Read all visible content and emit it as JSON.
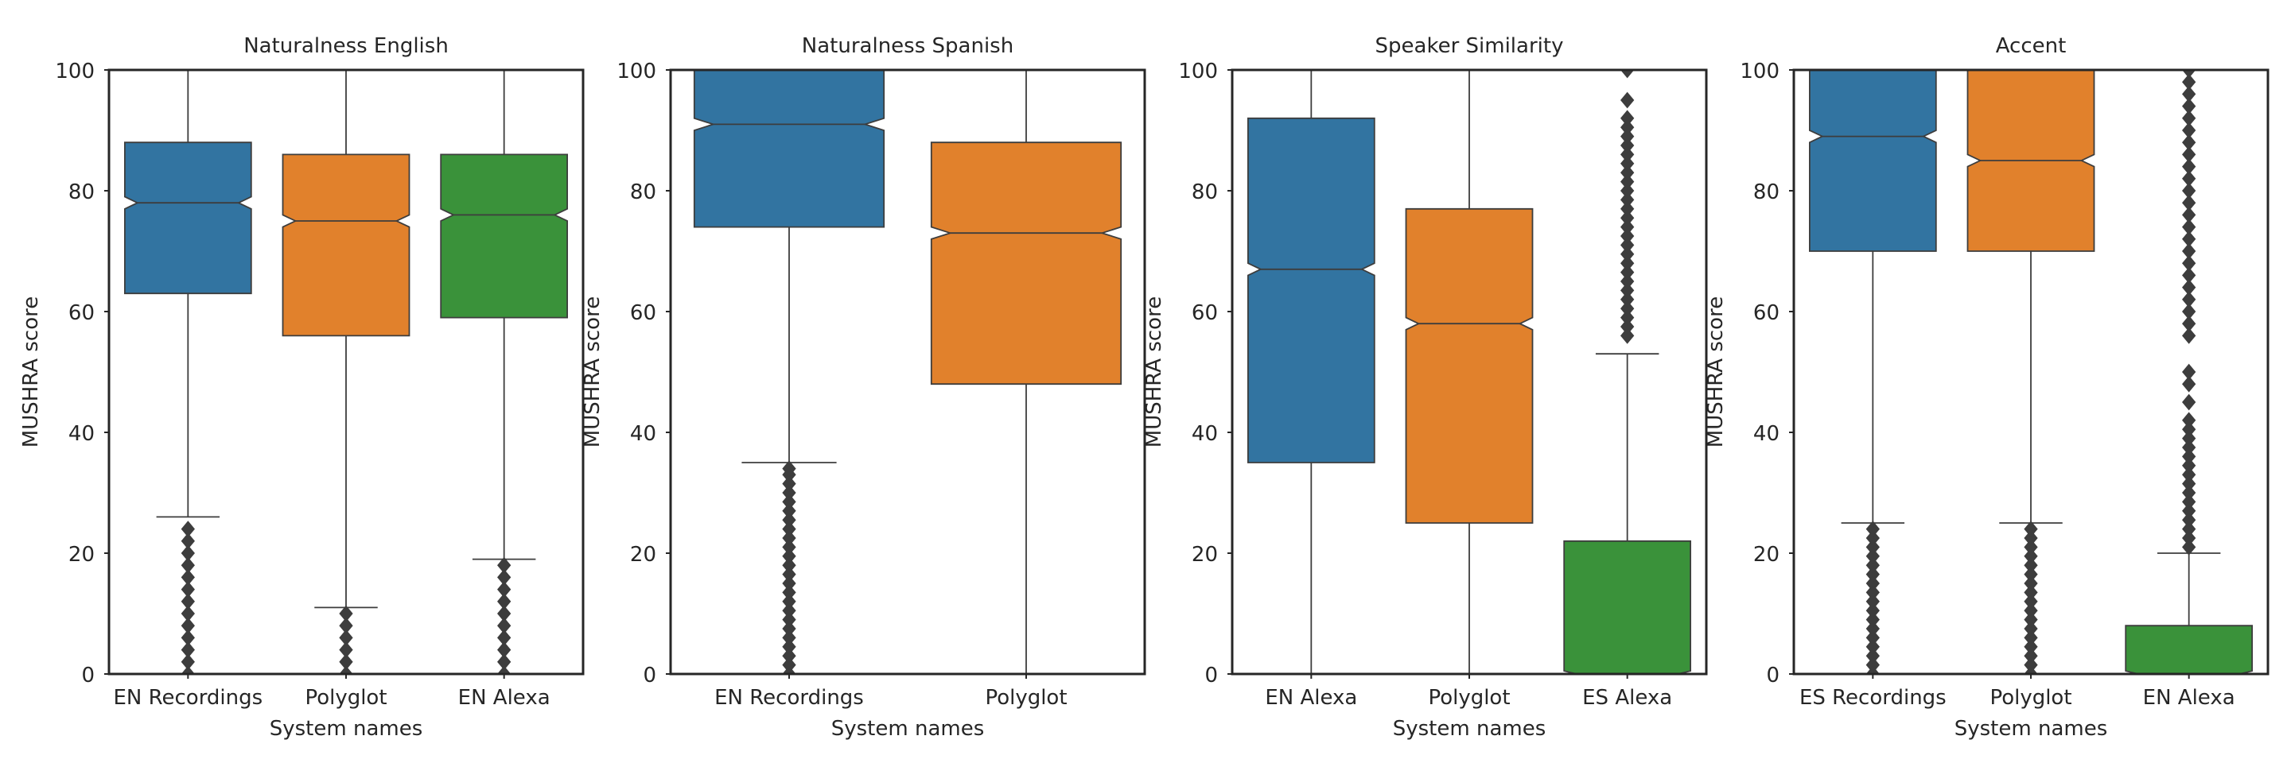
{
  "colors": {
    "blue": "#3274a1",
    "orange": "#e1812c",
    "green": "#3a923a",
    "edge": "#3d3d3d",
    "flier": "#3d3d3d"
  },
  "chart_data": [
    {
      "type": "box",
      "title": "Naturalness English",
      "xlabel": "System names",
      "ylabel": "MUSHRA score",
      "ylim": [
        0,
        100
      ],
      "yticks": [
        "0",
        "20",
        "40",
        "60",
        "80",
        "100"
      ],
      "notched": true,
      "categories": [
        "EN Recordings",
        "Polyglot",
        "EN Alexa"
      ],
      "boxes": [
        {
          "q1": 63,
          "median": 78,
          "q3": 88,
          "notch_low": 77,
          "notch_high": 79,
          "whisker_low": 26,
          "whisker_high": 100,
          "fliers": [
            0,
            2,
            4,
            6,
            8,
            10,
            12,
            14,
            16,
            18,
            20,
            22,
            24
          ],
          "color": "blue"
        },
        {
          "q1": 56,
          "median": 75,
          "q3": 86,
          "notch_low": 74,
          "notch_high": 76,
          "whisker_low": 11,
          "whisker_high": 100,
          "fliers": [
            0,
            2,
            4,
            6,
            8,
            10
          ],
          "color": "orange"
        },
        {
          "q1": 59,
          "median": 76,
          "q3": 86,
          "notch_low": 75,
          "notch_high": 77,
          "whisker_low": 19,
          "whisker_high": 100,
          "fliers": [
            0,
            2,
            4,
            6,
            8,
            10,
            12,
            14,
            16,
            18
          ],
          "color": "green"
        }
      ]
    },
    {
      "type": "box",
      "title": "Naturalness Spanish",
      "xlabel": "System names",
      "ylabel": "MUSHRA score",
      "ylim": [
        0,
        100
      ],
      "yticks": [
        "0",
        "20",
        "40",
        "60",
        "80",
        "100"
      ],
      "notched": true,
      "categories": [
        "EN Recordings",
        "Polyglot"
      ],
      "boxes": [
        {
          "q1": 74,
          "median": 91,
          "q3": 100,
          "notch_low": 90,
          "notch_high": 92,
          "whisker_low": 35,
          "whisker_high": 100,
          "fliers": [
            0,
            1.5,
            3,
            4.5,
            6,
            7.5,
            9,
            10.5,
            12,
            13.5,
            15,
            16.5,
            18,
            19.5,
            21,
            22.5,
            24,
            25.5,
            27,
            28.5,
            30,
            31.5,
            33,
            34
          ],
          "color": "blue"
        },
        {
          "q1": 48,
          "median": 73,
          "q3": 88,
          "notch_low": 72,
          "notch_high": 74,
          "whisker_low": 0,
          "whisker_high": 100,
          "fliers": [],
          "color": "orange"
        }
      ]
    },
    {
      "type": "box",
      "title": "Speaker Similarity",
      "xlabel": "System names",
      "ylabel": "MUSHRA score",
      "ylim": [
        0,
        100
      ],
      "yticks": [
        "0",
        "20",
        "40",
        "60",
        "80",
        "100"
      ],
      "notched": true,
      "categories": [
        "EN Alexa",
        "Polyglot",
        "ES Alexa"
      ],
      "boxes": [
        {
          "q1": 35,
          "median": 67,
          "q3": 92,
          "notch_low": 66,
          "notch_high": 68,
          "whisker_low": 0,
          "whisker_high": 100,
          "fliers": [],
          "color": "blue"
        },
        {
          "q1": 25,
          "median": 58,
          "q3": 77,
          "notch_low": 57,
          "notch_high": 59,
          "whisker_low": 0,
          "whisker_high": 100,
          "fliers": [],
          "color": "orange"
        },
        {
          "q1": 0,
          "median": 0,
          "q3": 22,
          "notch_low": 0,
          "notch_high": 0.5,
          "whisker_low": 0,
          "whisker_high": 53,
          "fliers": [
            56,
            57.5,
            59,
            60.5,
            62,
            63.5,
            65,
            66.5,
            68,
            69.5,
            71,
            72.5,
            74,
            75.5,
            77,
            78.5,
            80,
            81.5,
            83,
            84.5,
            86,
            87.5,
            89,
            90.5,
            92,
            95,
            100
          ],
          "color": "green"
        }
      ]
    },
    {
      "type": "box",
      "title": "Accent",
      "xlabel": "System names",
      "ylabel": "MUSHRA score",
      "ylim": [
        0,
        100
      ],
      "yticks": [
        "0",
        "20",
        "40",
        "60",
        "80",
        "100"
      ],
      "notched": true,
      "categories": [
        "ES Recordings",
        "Polyglot",
        "EN Alexa"
      ],
      "boxes": [
        {
          "q1": 70,
          "median": 89,
          "q3": 100,
          "notch_low": 88,
          "notch_high": 90,
          "whisker_low": 25,
          "whisker_high": 100,
          "fliers": [
            0,
            1.5,
            3,
            4.5,
            6,
            7.5,
            9,
            10.5,
            12,
            13.5,
            15,
            16.5,
            18,
            19.5,
            21,
            22.5,
            24
          ],
          "color": "blue"
        },
        {
          "q1": 70,
          "median": 85,
          "q3": 100,
          "notch_low": 84,
          "notch_high": 86,
          "whisker_low": 25,
          "whisker_high": 100,
          "fliers": [
            0,
            1.5,
            3,
            4.5,
            6,
            7.5,
            9,
            10.5,
            12,
            13.5,
            15,
            16.5,
            18,
            19.5,
            21,
            22.5,
            24
          ],
          "color": "orange"
        },
        {
          "q1": 0,
          "median": 0,
          "q3": 8,
          "notch_low": 0,
          "notch_high": 0.5,
          "whisker_low": 0,
          "whisker_high": 20,
          "fliers": [
            21,
            22.5,
            24,
            25.5,
            27,
            28.5,
            30,
            31.5,
            33,
            34.5,
            36,
            37.5,
            39,
            40.5,
            42,
            45,
            48,
            50,
            56,
            58,
            60,
            62,
            64,
            66,
            68,
            70,
            72,
            74,
            76,
            78,
            80,
            82,
            84,
            86,
            88,
            90,
            92,
            94,
            96,
            98,
            100
          ],
          "color": "green"
        }
      ]
    }
  ]
}
